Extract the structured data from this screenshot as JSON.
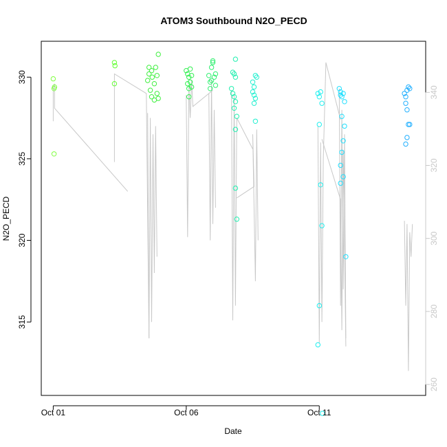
{
  "chart_data": {
    "type": "scatter",
    "title": "ATOM3 Southbound N2O_PECD",
    "xlabel": "Date",
    "ylabel": "N2O_PECD",
    "x_axis": {
      "ticks": [
        {
          "day": 1,
          "label": "Oct 01"
        },
        {
          "day": 6,
          "label": "Oct 06"
        },
        {
          "day": 11,
          "label": "Oct 11"
        }
      ],
      "range_days": [
        0.55,
        15.0
      ]
    },
    "y_axis_left": {
      "ticks": [
        315,
        320,
        325,
        330
      ],
      "range": [
        310.5,
        332.2
      ]
    },
    "y_axis_right": {
      "ticks": [
        260,
        280,
        300,
        320,
        340
      ],
      "range": [
        257,
        354
      ],
      "color": "#c8c8c8"
    },
    "line_color": "#c8c8c8",
    "series_scatter": [
      {
        "color": "#7fff3f",
        "points": [
          [
            1.0,
            329.9
          ],
          [
            1.03,
            329.3
          ],
          [
            1.05,
            329.4
          ],
          [
            1.03,
            325.3
          ]
        ]
      },
      {
        "color": "#5fff2f",
        "points": [
          [
            3.3,
            330.9
          ],
          [
            3.32,
            330.7
          ],
          [
            3.3,
            329.6
          ]
        ]
      },
      {
        "color": "#3fef3f",
        "points": [
          [
            4.55,
            329.8
          ],
          [
            4.6,
            330.2
          ],
          [
            4.7,
            330.4
          ],
          [
            4.72,
            330.0
          ],
          [
            4.8,
            329.6
          ],
          [
            4.85,
            330.6
          ],
          [
            4.9,
            330.1
          ],
          [
            4.95,
            331.4
          ],
          [
            4.65,
            329.2
          ],
          [
            4.7,
            328.8
          ],
          [
            4.8,
            328.6
          ],
          [
            4.9,
            329.0
          ],
          [
            4.95,
            328.7
          ],
          [
            4.6,
            330.6
          ]
        ]
      },
      {
        "color": "#2fef4f",
        "points": [
          [
            6.0,
            330.4
          ],
          [
            6.05,
            330.2
          ],
          [
            6.1,
            330.0
          ],
          [
            6.15,
            329.7
          ],
          [
            6.2,
            329.4
          ],
          [
            6.05,
            329.6
          ],
          [
            6.1,
            329.3
          ],
          [
            6.15,
            330.5
          ],
          [
            6.2,
            330.1
          ],
          [
            6.1,
            328.8
          ]
        ]
      },
      {
        "color": "#2fef6f",
        "points": [
          [
            6.85,
            330.1
          ],
          [
            6.9,
            329.7
          ],
          [
            6.95,
            330.6
          ],
          [
            7.0,
            330.9
          ],
          [
            7.05,
            330.0
          ],
          [
            7.1,
            329.5
          ],
          [
            6.9,
            329.3
          ],
          [
            7.0,
            331.0
          ],
          [
            7.1,
            330.2
          ],
          [
            6.95,
            329.8
          ]
        ]
      },
      {
        "color": "#1fefaf",
        "points": [
          [
            7.7,
            329.3
          ],
          [
            7.75,
            329.0
          ],
          [
            7.8,
            328.8
          ],
          [
            7.85,
            331.1
          ],
          [
            7.75,
            330.3
          ],
          [
            7.8,
            330.2
          ],
          [
            7.85,
            328.5
          ],
          [
            7.9,
            327.6
          ],
          [
            7.85,
            326.8
          ],
          [
            7.8,
            328.1
          ],
          [
            7.85,
            323.2
          ],
          [
            7.9,
            321.3
          ],
          [
            7.85,
            330.0
          ]
        ]
      },
      {
        "color": "#1fefcf",
        "points": [
          [
            8.5,
            329.7
          ],
          [
            8.55,
            329.4
          ],
          [
            8.6,
            330.1
          ],
          [
            8.65,
            330.0
          ],
          [
            8.55,
            328.9
          ],
          [
            8.6,
            328.7
          ],
          [
            8.5,
            329.1
          ],
          [
            8.55,
            328.4
          ],
          [
            8.6,
            327.3
          ]
        ]
      },
      {
        "color": "#1fefef",
        "points": [
          [
            10.95,
            329.0
          ],
          [
            11.0,
            328.8
          ],
          [
            11.05,
            329.1
          ],
          [
            11.1,
            328.4
          ],
          [
            11.0,
            327.1
          ],
          [
            11.05,
            323.4
          ],
          [
            11.1,
            320.9
          ],
          [
            11.0,
            316.0
          ],
          [
            10.95,
            313.6
          ],
          [
            11.12,
            309.4
          ]
        ]
      },
      {
        "color": "#1fdfff",
        "points": [
          [
            11.75,
            329.3
          ],
          [
            11.8,
            329.1
          ],
          [
            11.85,
            328.8
          ],
          [
            11.9,
            329.0
          ],
          [
            11.95,
            328.5
          ],
          [
            11.8,
            328.9
          ],
          [
            11.85,
            327.6
          ],
          [
            11.9,
            326.1
          ],
          [
            11.85,
            325.4
          ],
          [
            11.8,
            324.6
          ],
          [
            11.9,
            323.9
          ],
          [
            12.0,
            319.0
          ],
          [
            11.8,
            323.5
          ],
          [
            11.95,
            327.0
          ]
        ]
      },
      {
        "color": "#1fafff",
        "points": [
          [
            14.2,
            329.0
          ],
          [
            14.25,
            328.8
          ],
          [
            14.3,
            329.2
          ],
          [
            14.35,
            329.4
          ],
          [
            14.25,
            328.4
          ],
          [
            14.3,
            328.0
          ],
          [
            14.35,
            327.1
          ],
          [
            14.4,
            327.1
          ],
          [
            14.3,
            326.3
          ],
          [
            14.25,
            325.9
          ],
          [
            14.4,
            329.3
          ]
        ]
      }
    ],
    "line_segments": [
      [
        [
          1.0,
          327.3
        ],
        [
          1.0,
          329.3
        ],
        [
          1.05,
          329.6
        ],
        [
          1.05,
          328.1
        ],
        [
          3.8,
          323.0
        ]
      ],
      [
        [
          3.3,
          324.8
        ],
        [
          3.3,
          330.2
        ],
        [
          4.5,
          329.0
        ],
        [
          4.6,
          314.0
        ]
      ],
      [
        [
          4.55,
          327.8
        ],
        [
          4.6,
          314.0
        ],
        [
          4.65,
          327.5
        ],
        [
          4.7,
          315.0
        ],
        [
          4.75,
          326.5
        ],
        [
          4.8,
          318.0
        ],
        [
          4.85,
          327.0
        ],
        [
          4.9,
          319.0
        ]
      ],
      [
        [
          6.0,
          328.9
        ],
        [
          6.05,
          320.2
        ],
        [
          6.1,
          329.5
        ],
        [
          6.15,
          327.5
        ],
        [
          6.2,
          329.8
        ],
        [
          6.25,
          328.2
        ],
        [
          7.0,
          329.2
        ]
      ],
      [
        [
          6.85,
          329.0
        ],
        [
          6.9,
          320.0
        ],
        [
          6.95,
          329.8
        ],
        [
          7.0,
          321.0
        ],
        [
          7.05,
          328.0
        ],
        [
          7.1,
          322.0
        ]
      ],
      [
        [
          7.7,
          329.2
        ],
        [
          7.75,
          315.1
        ],
        [
          7.8,
          328.9
        ],
        [
          7.85,
          316.0
        ],
        [
          7.9,
          327.5
        ],
        [
          8.5,
          325.6
        ]
      ],
      [
        [
          7.9,
          322.6
        ],
        [
          8.55,
          323.3
        ],
        [
          8.5,
          326.5
        ],
        [
          8.6,
          317.5
        ],
        [
          8.65,
          326.8
        ],
        [
          8.7,
          320.0
        ]
      ],
      [
        [
          10.95,
          327.0
        ],
        [
          11.0,
          313.7
        ],
        [
          11.05,
          326.0
        ],
        [
          11.1,
          315.0
        ],
        [
          11.15,
          325.0
        ],
        [
          11.25,
          330.9
        ],
        [
          11.8,
          327.4
        ]
      ],
      [
        [
          11.75,
          329.3
        ],
        [
          11.8,
          316.0
        ],
        [
          11.85,
          328.0
        ],
        [
          11.9,
          317.0
        ],
        [
          11.95,
          326.5
        ],
        [
          12.0,
          314.0
        ]
      ],
      [
        [
          11.1,
          326.2
        ],
        [
          11.8,
          322.5
        ],
        [
          11.85,
          314.5
        ],
        [
          11.9,
          325.5
        ],
        [
          12.0,
          313.5
        ]
      ],
      [
        [
          14.2,
          321.2
        ],
        [
          14.25,
          316.0
        ],
        [
          14.3,
          321.0
        ],
        [
          14.35,
          312.0
        ],
        [
          14.4,
          320.5
        ],
        [
          14.45,
          319.0
        ],
        [
          14.5,
          321.0
        ]
      ]
    ]
  }
}
